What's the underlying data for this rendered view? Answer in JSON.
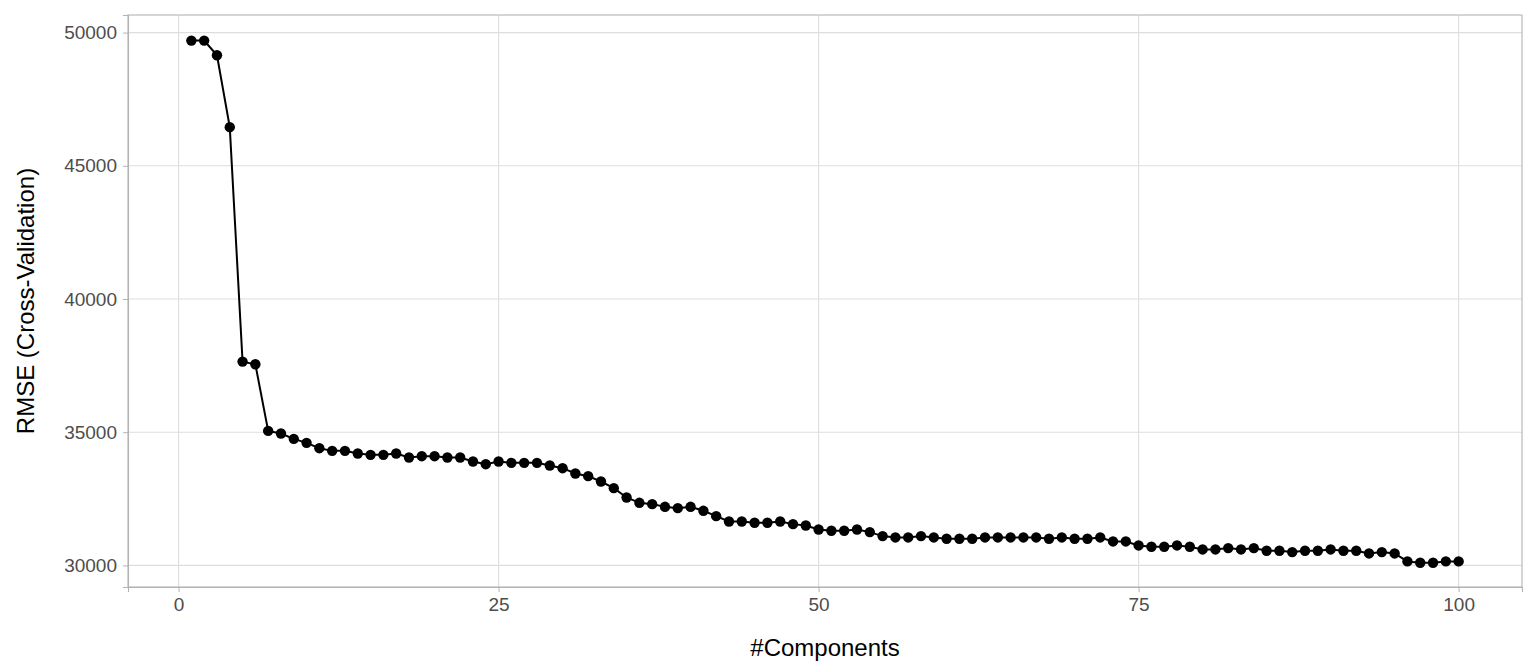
{
  "chart_data": {
    "type": "line",
    "xlabel": "#Components",
    "ylabel": "RMSE (Cross-Validation)",
    "x": [
      1,
      2,
      3,
      4,
      5,
      6,
      7,
      8,
      9,
      10,
      11,
      12,
      13,
      14,
      15,
      16,
      17,
      18,
      19,
      20,
      21,
      22,
      23,
      24,
      25,
      26,
      27,
      28,
      29,
      30,
      31,
      32,
      33,
      34,
      35,
      36,
      37,
      38,
      39,
      40,
      41,
      42,
      43,
      44,
      45,
      46,
      47,
      48,
      49,
      50,
      51,
      52,
      53,
      54,
      55,
      56,
      57,
      58,
      59,
      60,
      61,
      62,
      63,
      64,
      65,
      66,
      67,
      68,
      69,
      70,
      71,
      72,
      73,
      74,
      75,
      76,
      77,
      78,
      79,
      80,
      81,
      82,
      83,
      84,
      85,
      86,
      87,
      88,
      89,
      90,
      91,
      92,
      93,
      94,
      95,
      96,
      97,
      98,
      99,
      100
    ],
    "values": [
      49700,
      49700,
      49150,
      46450,
      37650,
      37550,
      35050,
      34950,
      34750,
      34600,
      34400,
      34300,
      34300,
      34200,
      34150,
      34150,
      34200,
      34050,
      34100,
      34100,
      34050,
      34050,
      33900,
      33800,
      33900,
      33850,
      33850,
      33850,
      33750,
      33650,
      33450,
      33350,
      33150,
      32900,
      32550,
      32350,
      32300,
      32200,
      32150,
      32200,
      32050,
      31850,
      31650,
      31650,
      31600,
      31600,
      31650,
      31550,
      31500,
      31350,
      31300,
      31300,
      31350,
      31250,
      31100,
      31050,
      31050,
      31100,
      31050,
      31000,
      31000,
      31000,
      31050,
      31050,
      31050,
      31050,
      31050,
      31000,
      31050,
      31000,
      31000,
      31050,
      30900,
      30900,
      30750,
      30700,
      30700,
      30750,
      30700,
      30600,
      30600,
      30650,
      30600,
      30650,
      30550,
      30550,
      30500,
      30550,
      30550,
      30600,
      30550,
      30550,
      30450,
      30500,
      30450,
      30150,
      30100,
      30100,
      30150,
      30150
    ],
    "color": "#000000",
    "marker": "circle",
    "xlim": [
      -3.95,
      104.95
    ],
    "ylim": [
      29190,
      50660
    ],
    "xticks": [
      0,
      25,
      50,
      75,
      100
    ],
    "yticks": [
      30000,
      35000,
      40000,
      45000,
      50000
    ],
    "grid": true
  }
}
